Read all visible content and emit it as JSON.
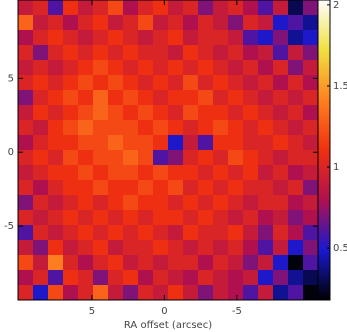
{
  "chart_data": {
    "type": "heatmap",
    "xlabel": "RA offset (arcsec)",
    "xlim": [
      10.1,
      -10.6
    ],
    "xticks": [
      5,
      0,
      -5
    ],
    "ylim": [
      -10,
      10.3
    ],
    "yticks": [
      5,
      0,
      -5
    ],
    "clim": [
      0.18,
      2.03
    ],
    "cticks": [
      0.5,
      1,
      1.5,
      2
    ],
    "colorscale": [
      "#000000",
      "#1818d0",
      "#b01050",
      "#f03010",
      "#ff8020",
      "#f0e040",
      "#ffffff"
    ],
    "z": [
      [
        0.9,
        1.0,
        0.6,
        1.1,
        0.9,
        1.0,
        1.2,
        0.8,
        1.0,
        1.1,
        0.9,
        1.0,
        0.7,
        0.9,
        1.0,
        0.8,
        0.6,
        0.9,
        0.3,
        0.7
      ],
      [
        1.3,
        0.9,
        1.0,
        0.8,
        1.0,
        1.1,
        0.9,
        1.0,
        1.2,
        0.9,
        1.0,
        0.8,
        1.0,
        0.9,
        0.7,
        1.0,
        0.9,
        0.5,
        0.6,
        0.4
      ],
      [
        0.8,
        1.0,
        1.1,
        1.0,
        0.9,
        1.0,
        1.1,
        1.0,
        0.9,
        1.0,
        1.1,
        0.9,
        1.0,
        1.0,
        0.9,
        0.6,
        0.5,
        0.7,
        0.4,
        0.5
      ],
      [
        1.0,
        0.7,
        1.0,
        1.1,
        1.0,
        1.1,
        1.0,
        1.1,
        1.0,
        1.0,
        0.9,
        1.1,
        1.0,
        0.9,
        1.0,
        0.8,
        0.9,
        0.6,
        0.9,
        0.7
      ],
      [
        0.9,
        1.0,
        0.9,
        1.0,
        1.1,
        1.2,
        1.1,
        1.0,
        1.1,
        1.0,
        1.1,
        1.0,
        1.1,
        1.0,
        0.9,
        1.0,
        0.8,
        1.0,
        0.7,
        0.9
      ],
      [
        1.0,
        1.1,
        1.0,
        1.1,
        1.2,
        1.1,
        1.2,
        1.1,
        1.0,
        1.1,
        1.0,
        1.2,
        1.0,
        1.1,
        1.0,
        0.9,
        1.0,
        0.8,
        1.0,
        0.8
      ],
      [
        0.7,
        1.0,
        1.1,
        1.2,
        1.1,
        1.3,
        1.1,
        1.2,
        1.1,
        1.0,
        1.1,
        1.1,
        1.2,
        1.0,
        1.1,
        1.0,
        0.9,
        1.0,
        0.9,
        1.0
      ],
      [
        0.9,
        1.1,
        1.0,
        1.1,
        1.2,
        1.3,
        1.2,
        1.1,
        1.2,
        1.1,
        1.0,
        1.2,
        1.1,
        1.1,
        1.0,
        1.1,
        1.0,
        0.9,
        1.0,
        0.8
      ],
      [
        1.0,
        0.9,
        1.1,
        1.2,
        1.3,
        1.2,
        1.2,
        1.2,
        1.1,
        1.2,
        1.1,
        1.0,
        1.1,
        1.2,
        1.1,
        1.0,
        1.1,
        1.0,
        0.9,
        1.0
      ],
      [
        0.8,
        1.0,
        1.1,
        1.1,
        1.2,
        1.2,
        1.3,
        1.2,
        1.2,
        1.1,
        0.5,
        0.9,
        0.6,
        1.1,
        1.1,
        1.0,
        1.0,
        1.1,
        1.0,
        0.9
      ],
      [
        1.0,
        1.1,
        1.0,
        1.2,
        1.1,
        1.2,
        1.2,
        1.3,
        1.2,
        0.6,
        0.7,
        1.0,
        1.1,
        1.0,
        1.2,
        1.1,
        1.0,
        0.9,
        1.0,
        1.0
      ],
      [
        0.9,
        1.0,
        1.1,
        1.1,
        1.2,
        1.1,
        1.2,
        1.2,
        1.1,
        1.2,
        1.1,
        1.1,
        1.0,
        1.1,
        1.0,
        1.1,
        0.9,
        1.0,
        0.8,
        0.9
      ],
      [
        1.0,
        0.8,
        1.0,
        1.1,
        1.1,
        1.2,
        1.1,
        1.1,
        1.2,
        1.1,
        1.2,
        1.0,
        1.1,
        1.0,
        1.1,
        1.0,
        1.0,
        0.9,
        1.0,
        0.7
      ],
      [
        0.7,
        1.0,
        0.9,
        1.0,
        1.1,
        1.0,
        1.1,
        1.2,
        1.1,
        1.1,
        1.0,
        1.1,
        1.0,
        1.1,
        1.0,
        0.9,
        1.0,
        1.0,
        0.8,
        0.9
      ],
      [
        1.0,
        0.9,
        1.0,
        1.1,
        1.0,
        1.1,
        1.0,
        1.1,
        1.0,
        1.1,
        1.1,
        1.0,
        1.1,
        1.0,
        0.9,
        1.0,
        0.8,
        0.9,
        0.7,
        0.8
      ],
      [
        0.6,
        1.0,
        0.9,
        1.0,
        1.1,
        1.0,
        1.1,
        1.0,
        1.1,
        1.0,
        0.9,
        1.1,
        1.0,
        1.0,
        1.1,
        0.9,
        0.7,
        1.0,
        0.8,
        0.6
      ],
      [
        0.9,
        0.7,
        1.1,
        0.9,
        1.0,
        1.1,
        0.9,
        1.0,
        1.0,
        1.1,
        1.0,
        0.9,
        1.0,
        0.9,
        1.0,
        0.8,
        0.6,
        0.9,
        0.5,
        0.7
      ],
      [
        1.2,
        0.9,
        1.4,
        1.0,
        0.8,
        1.0,
        1.1,
        0.9,
        1.0,
        0.9,
        1.0,
        1.0,
        0.8,
        1.0,
        0.9,
        0.7,
        0.9,
        0.5,
        0.2,
        0.6
      ],
      [
        0.8,
        1.0,
        0.6,
        1.1,
        1.0,
        0.7,
        1.0,
        1.1,
        0.8,
        1.0,
        0.9,
        0.8,
        1.0,
        0.9,
        0.8,
        0.9,
        0.5,
        0.7,
        0.4,
        0.3
      ],
      [
        1.0,
        0.5,
        1.2,
        0.8,
        1.0,
        1.3,
        0.9,
        0.7,
        1.0,
        0.9,
        1.1,
        0.9,
        0.7,
        0.9,
        0.8,
        0.6,
        0.9,
        0.4,
        0.6,
        0.2
      ]
    ]
  }
}
